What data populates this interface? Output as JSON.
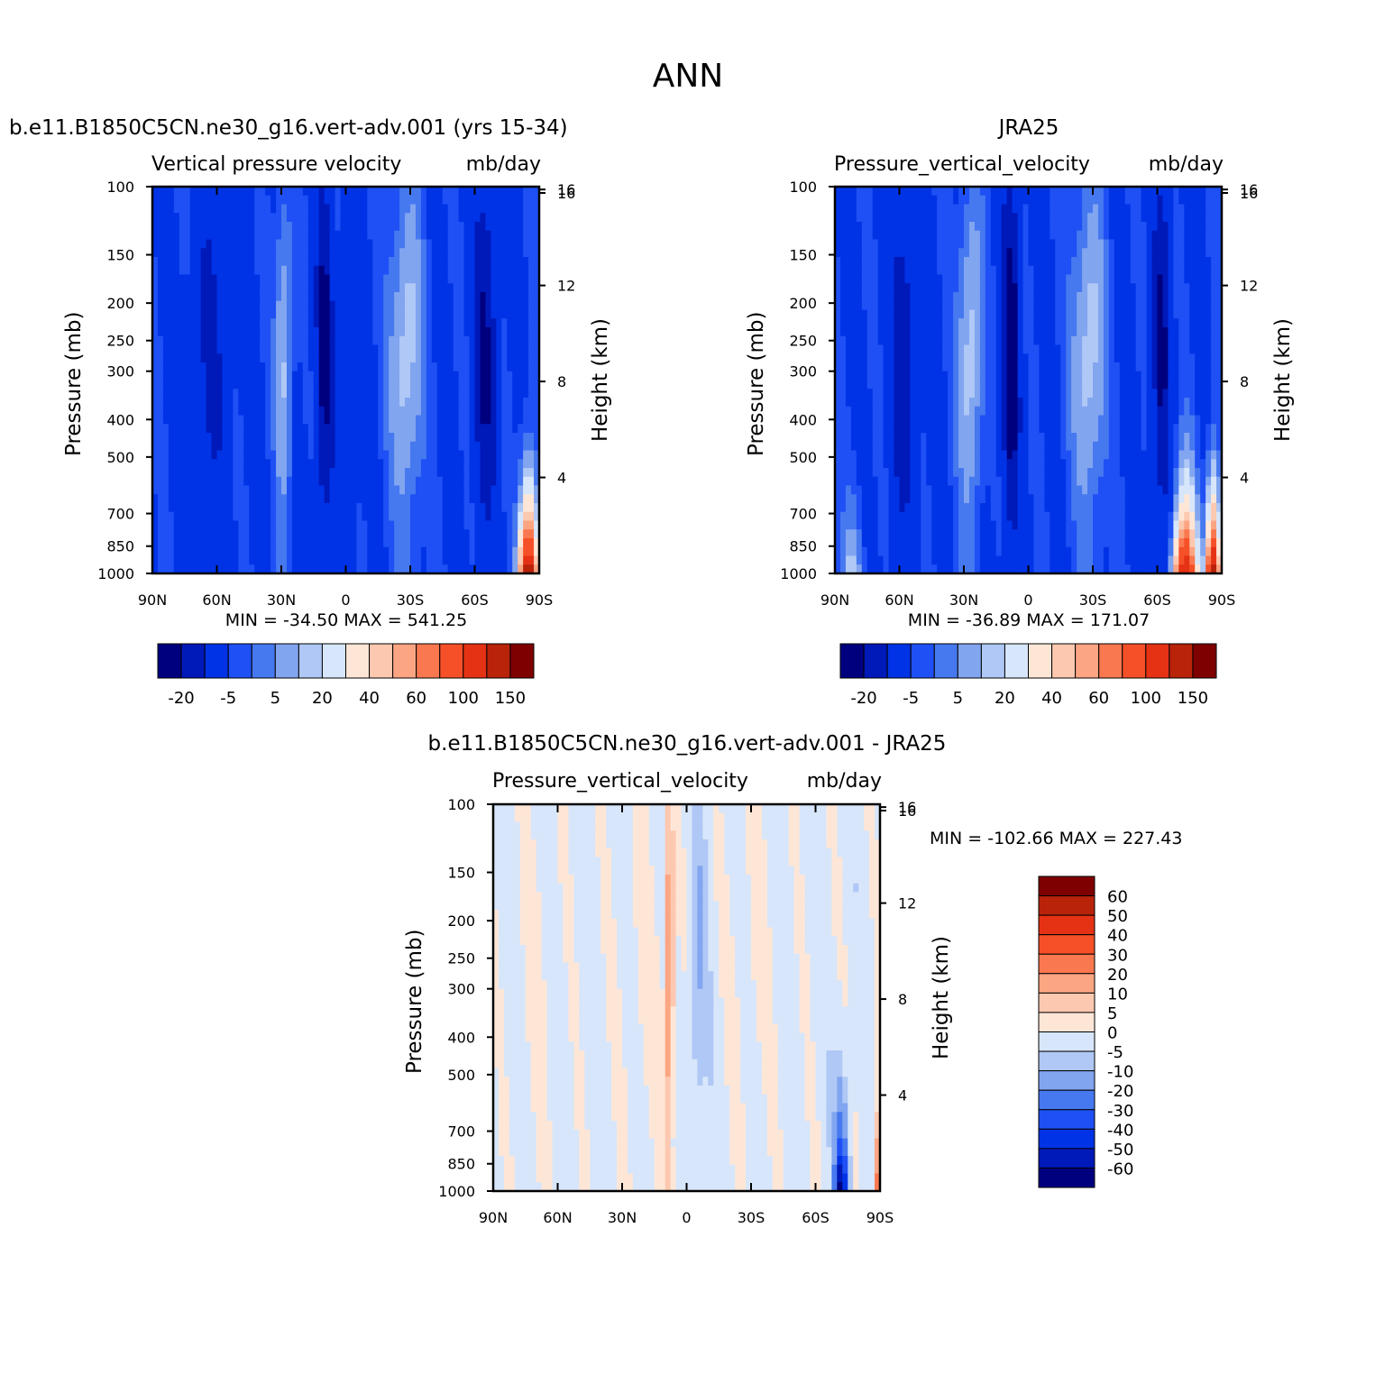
{
  "title": "ANN",
  "axis_common": {
    "ylabel": "Pressure (mb)",
    "y2label": "Height (km)",
    "pressure_ticks": [
      "100",
      "150",
      "200",
      "250",
      "300",
      "400",
      "500",
      "700",
      "850",
      "1000"
    ],
    "pressure_values": [
      100,
      150,
      200,
      250,
      300,
      400,
      500,
      700,
      850,
      1000
    ],
    "height_ticks": [
      "4",
      "8",
      "12",
      "16"
    ],
    "height_values": [
      4,
      8,
      12,
      16
    ],
    "lat_ticks": [
      "90N",
      "60N",
      "30N",
      "0",
      "30S",
      "60S",
      "90S"
    ],
    "lat_values": [
      90,
      60,
      30,
      0,
      -30,
      -60,
      -90
    ]
  },
  "chart_data": [
    {
      "type": "heatmap",
      "panel": "model",
      "title": "b.e11.B1850C5CN.ne30_g16.vert-adv.001 (yrs 15-34)",
      "subtitle_left": "Vertical pressure velocity",
      "subtitle_right": "mb/day",
      "stats": "MIN = -34.50   MAX = 541.25",
      "xrange": [
        90,
        -90
      ],
      "yrange_mb": [
        1000,
        100
      ],
      "fields": [
        {
          "lat": 63,
          "amp": -10,
          "w": 9
        },
        {
          "lat": 29,
          "amp": 18,
          "w": 4
        },
        {
          "lat": 10,
          "amp": -22,
          "w": 4
        },
        {
          "lat": -2,
          "amp": -10,
          "w": 4
        },
        {
          "lat": -28,
          "amp": 20,
          "w": 8
        },
        {
          "lat": -65,
          "amp": -20,
          "w": 5
        },
        {
          "lat": -85,
          "amp": 140,
          "w": 4,
          "low": true
        }
      ]
    },
    {
      "type": "heatmap",
      "panel": "obs",
      "title": "JRA25",
      "subtitle_left": "Pressure_vertical_velocity",
      "subtitle_right": "mb/day",
      "stats": "MIN = -36.89   MAX = 171.07",
      "xrange": [
        90,
        -90
      ],
      "yrange_mb": [
        1000,
        100
      ],
      "fields": [
        {
          "lat": 82,
          "amp": 20,
          "w": 5,
          "low": true
        },
        {
          "lat": 58,
          "amp": -15,
          "w": 6
        },
        {
          "lat": 27,
          "amp": 20,
          "w": 6
        },
        {
          "lat": 8,
          "amp": -26,
          "w": 4
        },
        {
          "lat": -28,
          "amp": 20,
          "w": 8
        },
        {
          "lat": -62,
          "amp": -20,
          "w": 4
        },
        {
          "lat": -73,
          "amp": 120,
          "w": 5,
          "low": true
        },
        {
          "lat": -86,
          "amp": 140,
          "w": 3,
          "low": true
        }
      ]
    },
    {
      "type": "heatmap",
      "panel": "diff",
      "title": "b.e11.B1850C5CN.ne30_g16.vert-adv.001 - JRA25",
      "subtitle_left": "Pressure_vertical_velocity",
      "subtitle_right": "mb/day",
      "stats": "MIN = -102.66   MAX = 227.43",
      "xrange": [
        90,
        -90
      ],
      "yrange_mb": [
        1000,
        100
      ],
      "fields": [
        {
          "lat": 70,
          "amp": 3,
          "w": 8
        },
        {
          "lat": 20,
          "amp": 3,
          "w": 12
        },
        {
          "lat": 8,
          "amp": 20,
          "w": 2
        },
        {
          "lat": -5,
          "amp": -8,
          "w": 4
        },
        {
          "lat": -30,
          "amp": 3,
          "w": 10
        },
        {
          "lat": -72,
          "amp": -70,
          "w": 3,
          "low": true
        },
        {
          "lat": -88,
          "amp": 60,
          "w": 1,
          "low": true
        }
      ]
    }
  ],
  "colorbar_main": {
    "labels": [
      "-20",
      "-5",
      "5",
      "20",
      "40",
      "60",
      "100",
      "150"
    ],
    "colors": [
      "#00007f",
      "#0019b9",
      "#0033e6",
      "#1e50f5",
      "#4678f0",
      "#82a5f0",
      "#afc8f5",
      "#d7e6fa",
      "#fee6d7",
      "#fdc8b0",
      "#fca582",
      "#fa7850",
      "#f55028",
      "#e63214",
      "#b9230a",
      "#7f0000"
    ]
  },
  "colorbar_diff": {
    "labels": [
      "60",
      "50",
      "40",
      "30",
      "20",
      "10",
      "5",
      "0",
      "-5",
      "-10",
      "-20",
      "-30",
      "-40",
      "-50",
      "-60"
    ],
    "colors": [
      "#7f0000",
      "#b9230a",
      "#e63214",
      "#f55028",
      "#fa7850",
      "#fca582",
      "#fdc8b0",
      "#fee6d7",
      "#d7e6fa",
      "#afc8f5",
      "#82a5f0",
      "#4678f0",
      "#1e50f5",
      "#0033e6",
      "#0019b9",
      "#00007f"
    ]
  }
}
